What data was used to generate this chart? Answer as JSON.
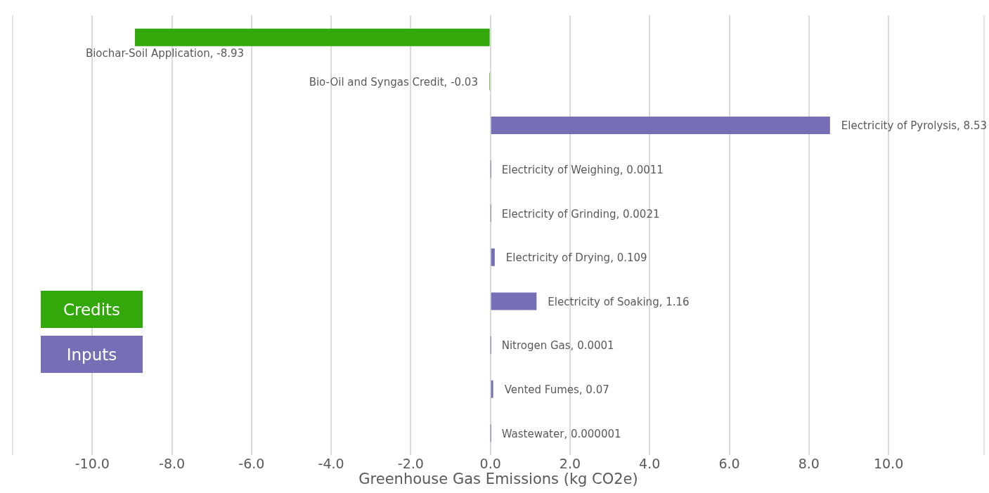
{
  "chart_data": {
    "type": "bar",
    "orientation": "horizontal",
    "xlabel": "Greenhouse Gas Emissions (kg CO2e)",
    "categories": [
      null,
      null,
      null,
      null,
      null,
      null,
      null,
      null,
      null,
      null
    ],
    "series": [
      {
        "name": "Credits",
        "color": "#33a80a",
        "values": [
          -8.93,
          -0.03,
          null,
          null,
          null,
          null,
          null,
          null,
          null,
          null
        ],
        "value_labels": [
          "Biochar-Soil Application, -8.93",
          "Bio-Oil and Syngas Credit, -0.03",
          null,
          null,
          null,
          null,
          null,
          null,
          null,
          null
        ]
      },
      {
        "name": "Inputs",
        "color": "#7570b6",
        "values": [
          null,
          null,
          8.53,
          0.0011,
          0.0021,
          0.109,
          1.16,
          0.0001,
          0.07,
          1e-06
        ],
        "value_labels": [
          null,
          null,
          "Electricity of Pyrolysis, 8.53",
          "Electricity of Weighing, 0.0011",
          "Electricity of Grinding, 0.0021",
          "Electricity of Drying, 0.109",
          "Electricity of Soaking, 1.16",
          "Nitrogen Gas, 0.0001",
          "Vented Fumes, 0.07",
          "Wastewater, 0.000001"
        ]
      }
    ],
    "xlim": [
      -12,
      12.4
    ],
    "xticks": [
      {
        "value": -10,
        "label": "-10.0"
      },
      {
        "value": -8,
        "label": "-8.0"
      },
      {
        "value": -6,
        "label": "-6.0"
      },
      {
        "value": -4,
        "label": "-4.0"
      },
      {
        "value": -2,
        "label": "-2.0"
      },
      {
        "value": 0,
        "label": "0.0"
      },
      {
        "value": 2,
        "label": "2.0"
      },
      {
        "value": 4,
        "label": "4.0"
      },
      {
        "value": 6,
        "label": "6.0"
      },
      {
        "value": 8,
        "label": "8.0"
      },
      {
        "value": 10,
        "label": "10.0"
      }
    ],
    "grid": "x",
    "tick_labels": "x",
    "legend": "left"
  }
}
